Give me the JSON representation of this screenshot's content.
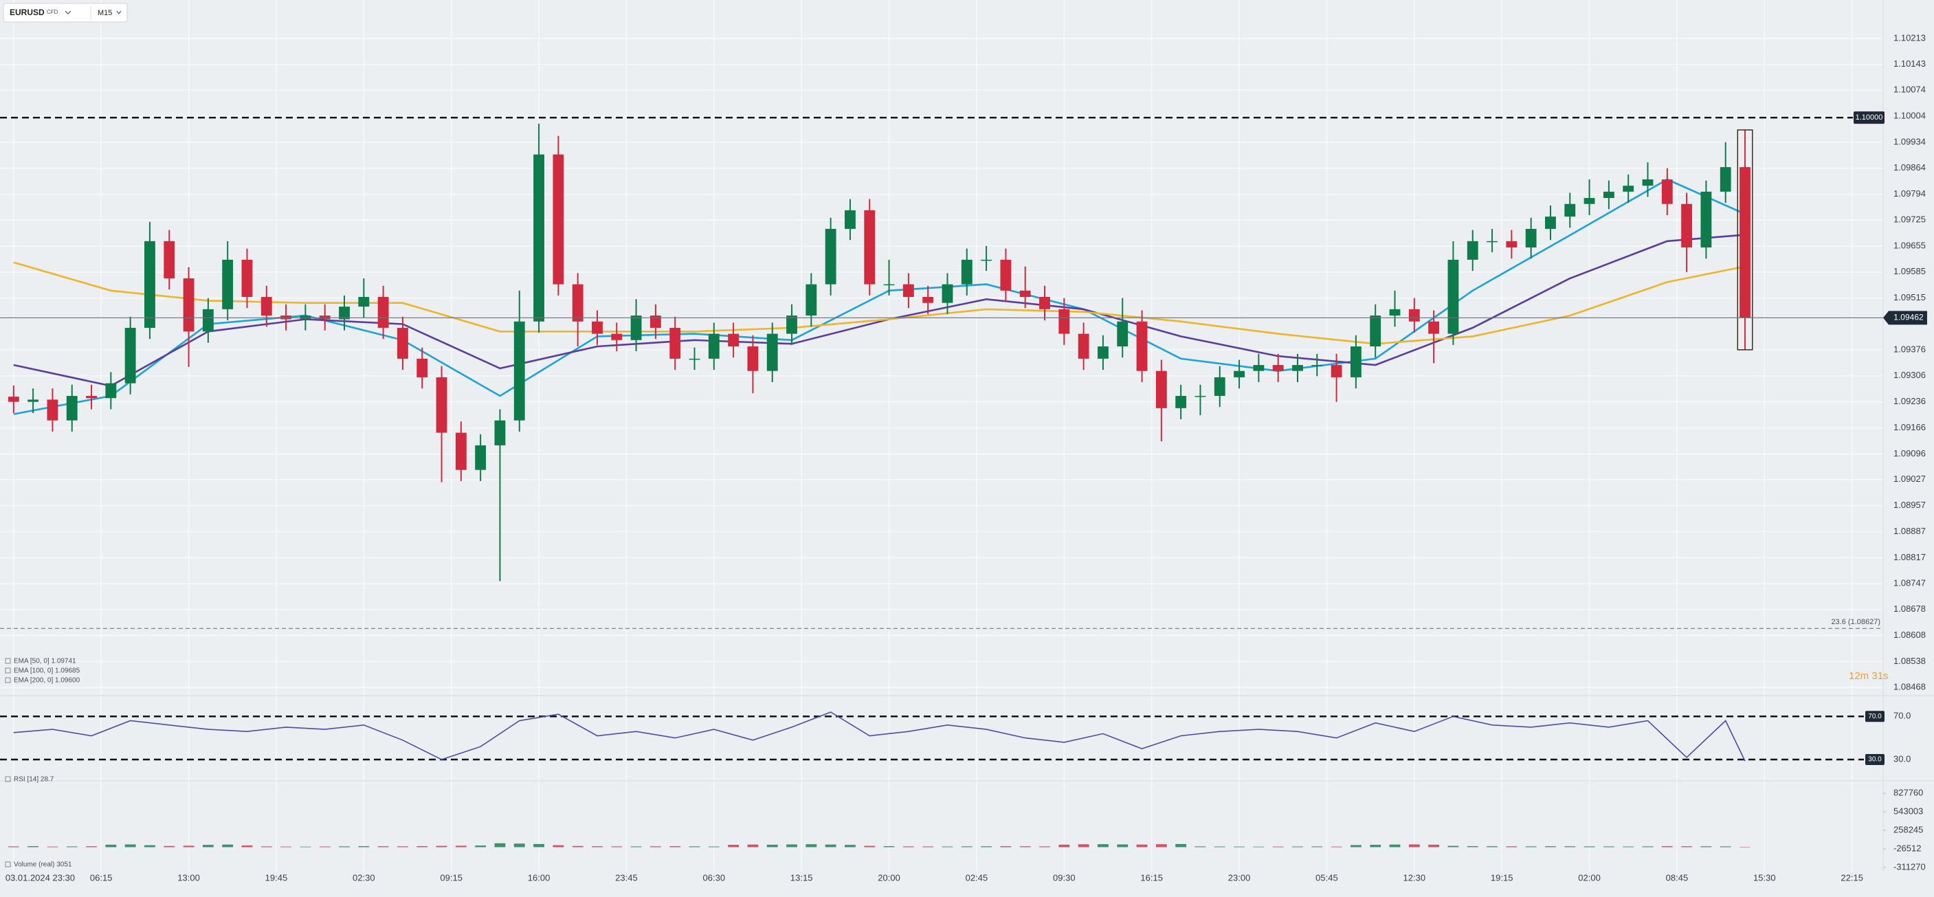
{
  "toolbar": {
    "symbol": "EURUSD",
    "instrument_type": "CFD",
    "timeframe": "M15"
  },
  "countdown": "12m 31s",
  "chart_data": [
    {
      "type": "candlestick",
      "up_color": "#0e7c4a",
      "down_color": "#d1293d",
      "xlim": [
        -0.7,
        96.1
      ],
      "xticks": [
        {
          "value": 0,
          "label": "03.01.2024 23:30"
        },
        {
          "value": 4.5,
          "label": "06:15"
        },
        {
          "value": 9,
          "label": "13:00"
        },
        {
          "value": 13.5,
          "label": "19:45"
        },
        {
          "value": 18,
          "label": "02:30"
        },
        {
          "value": 22.5,
          "label": "09:15"
        },
        {
          "value": 27,
          "label": "16:00"
        },
        {
          "value": 31.5,
          "label": "23:45"
        },
        {
          "value": 36,
          "label": "06:30"
        },
        {
          "value": 40.5,
          "label": "13:15"
        },
        {
          "value": 45,
          "label": "20:00"
        },
        {
          "value": 49.5,
          "label": "02:45"
        },
        {
          "value": 54,
          "label": "09:30"
        },
        {
          "value": 58.5,
          "label": "16:15"
        },
        {
          "value": 63,
          "label": "23:00"
        },
        {
          "value": 67.5,
          "label": "05:45"
        },
        {
          "value": 72,
          "label": "12:30"
        },
        {
          "value": 76.5,
          "label": "19:15"
        },
        {
          "value": 81,
          "label": "02:00"
        },
        {
          "value": 85.5,
          "label": "08:45"
        },
        {
          "value": 90,
          "label": "15:30"
        },
        {
          "value": 94.5,
          "label": "22:15"
        }
      ],
      "ylim": [
        1.0845,
        1.10283
      ],
      "yticks": [
        1.10213,
        1.10143,
        1.10074,
        1.10004,
        1.09934,
        1.09864,
        1.09794,
        1.09725,
        1.09655,
        1.09585,
        1.09515,
        1.09376,
        1.09306,
        1.09236,
        1.09166,
        1.09096,
        1.09027,
        1.08957,
        1.08887,
        1.08817,
        1.08747,
        1.08678,
        1.08608,
        1.08538,
        1.08468
      ],
      "grid": true,
      "levels": [
        {
          "value": 1.1,
          "label": "1.10000"
        }
      ],
      "price_line": {
        "value": 1.09462,
        "label": "1.09462"
      },
      "fib_levels": [
        {
          "value": 1.08627,
          "label": "23.6 (1.08627)"
        }
      ],
      "open": [
        1.0925,
        1.09236,
        1.09242,
        1.09186,
        1.09252,
        1.09246,
        1.09286,
        1.09435,
        1.09668,
        1.09568,
        1.09425,
        1.09485,
        1.09618,
        1.09518,
        1.09468,
        1.09458,
        1.09468,
        1.09458,
        1.09492,
        1.09518,
        1.09435,
        1.09352,
        1.09302,
        1.09153,
        1.09053,
        1.09119,
        1.09186,
        1.09452,
        1.09901,
        1.09552,
        1.09452,
        1.09419,
        1.09402,
        1.09468,
        1.09435,
        1.09352,
        1.09352,
        1.09419,
        1.09385,
        1.09319,
        1.09419,
        1.09468,
        1.09552,
        1.09701,
        1.09751,
        1.09552,
        1.09552,
        1.09518,
        1.09502,
        1.09552,
        1.09618,
        1.09618,
        1.09535,
        1.09518,
        1.09485,
        1.09419,
        1.09352,
        1.09385,
        1.09452,
        1.09319,
        1.09219,
        1.09252,
        1.09252,
        1.09302,
        1.09319,
        1.09335,
        1.09319,
        1.09335,
        1.09335,
        1.09302,
        1.09385,
        1.09468,
        1.09485,
        1.09452,
        1.09419,
        1.09618,
        1.09668,
        1.09668,
        1.09651,
        1.09701,
        1.09734,
        1.09768,
        1.09784,
        1.09801,
        1.09817,
        1.09834,
        1.09768,
        1.09651,
        1.09801,
        1.09867
      ],
      "high": [
        1.0928,
        1.09272,
        1.09272,
        1.09282,
        1.09282,
        1.09316,
        1.09465,
        1.0972,
        1.09698,
        1.09598,
        1.09515,
        1.09668,
        1.09648,
        1.09548,
        1.09498,
        1.09498,
        1.09498,
        1.09522,
        1.09568,
        1.09548,
        1.09465,
        1.09382,
        1.09332,
        1.09183,
        1.09149,
        1.09216,
        1.09535,
        1.09984,
        1.09951,
        1.09582,
        1.09482,
        1.09449,
        1.09512,
        1.09498,
        1.09465,
        1.09382,
        1.09449,
        1.09449,
        1.09415,
        1.09449,
        1.09498,
        1.09582,
        1.09731,
        1.09781,
        1.09781,
        1.09618,
        1.09582,
        1.09548,
        1.09582,
        1.09648,
        1.09655,
        1.09648,
        1.096,
        1.09548,
        1.09515,
        1.09449,
        1.09415,
        1.09515,
        1.09482,
        1.09349,
        1.09282,
        1.09282,
        1.09332,
        1.09349,
        1.09365,
        1.09365,
        1.09365,
        1.09365,
        1.09365,
        1.09415,
        1.09498,
        1.09535,
        1.09515,
        1.09482,
        1.09668,
        1.09698,
        1.09701,
        1.09698,
        1.09731,
        1.09764,
        1.09798,
        1.09834,
        1.09831,
        1.09847,
        1.0988,
        1.09864,
        1.09798,
        1.09831,
        1.09934,
        1.09967
      ],
      "low": [
        1.09206,
        1.09206,
        1.09156,
        1.09156,
        1.09216,
        1.09216,
        1.09256,
        1.09405,
        1.09538,
        1.0933,
        1.09395,
        1.09455,
        1.09488,
        1.09438,
        1.09428,
        1.09428,
        1.09428,
        1.09428,
        1.09462,
        1.09405,
        1.09322,
        1.09272,
        1.0902,
        1.09023,
        1.09023,
        1.08754,
        1.09156,
        1.09422,
        1.09522,
        1.09385,
        1.09389,
        1.09372,
        1.09372,
        1.09405,
        1.09322,
        1.09322,
        1.09322,
        1.09355,
        1.09259,
        1.09289,
        1.09389,
        1.09438,
        1.09522,
        1.09671,
        1.09522,
        1.09522,
        1.09488,
        1.09472,
        1.09472,
        1.09522,
        1.09588,
        1.09505,
        1.09488,
        1.09455,
        1.09389,
        1.09322,
        1.09322,
        1.09355,
        1.09289,
        1.0913,
        1.09189,
        1.092,
        1.09222,
        1.09272,
        1.09289,
        1.09289,
        1.09289,
        1.09305,
        1.09236,
        1.09272,
        1.09355,
        1.09438,
        1.09422,
        1.0934,
        1.09389,
        1.09588,
        1.09638,
        1.09621,
        1.09621,
        1.09671,
        1.09704,
        1.09738,
        1.09754,
        1.09771,
        1.09787,
        1.09738,
        1.09585,
        1.09621,
        1.09771,
        1.09376
      ],
      "close": [
        1.09236,
        1.09242,
        1.09186,
        1.09252,
        1.09246,
        1.09286,
        1.09435,
        1.09668,
        1.09568,
        1.09425,
        1.09485,
        1.09618,
        1.09518,
        1.09468,
        1.09458,
        1.09468,
        1.09458,
        1.09492,
        1.09518,
        1.09435,
        1.09352,
        1.09302,
        1.09153,
        1.09053,
        1.09119,
        1.09186,
        1.09452,
        1.09901,
        1.09552,
        1.09452,
        1.09419,
        1.09402,
        1.09468,
        1.09435,
        1.09352,
        1.09352,
        1.09419,
        1.09385,
        1.09319,
        1.09419,
        1.09468,
        1.09552,
        1.09701,
        1.09751,
        1.09552,
        1.09552,
        1.09518,
        1.09502,
        1.09552,
        1.09618,
        1.09618,
        1.09535,
        1.09518,
        1.09485,
        1.09419,
        1.09352,
        1.09385,
        1.09452,
        1.09319,
        1.09219,
        1.09252,
        1.09252,
        1.09302,
        1.09319,
        1.09335,
        1.09319,
        1.09335,
        1.09335,
        1.09302,
        1.09385,
        1.09468,
        1.09485,
        1.09452,
        1.09419,
        1.09618,
        1.09668,
        1.09668,
        1.09651,
        1.09701,
        1.09734,
        1.09768,
        1.09784,
        1.09801,
        1.09817,
        1.09834,
        1.09768,
        1.09651,
        1.09801,
        1.09867,
        1.09462
      ],
      "overlays": [
        {
          "label": "EMA [50, 0] 1.09741",
          "color": "#1aa3dc",
          "x": [
            0,
            5,
            10,
            15,
            20,
            25,
            30,
            35,
            40,
            45,
            50,
            55,
            60,
            65,
            70,
            75,
            80,
            85,
            89
          ],
          "values": [
            1.09203,
            1.09252,
            1.09445,
            1.09468,
            1.09402,
            1.09252,
            1.09412,
            1.09419,
            1.09402,
            1.09535,
            1.09552,
            1.09485,
            1.09352,
            1.09319,
            1.09352,
            1.09535,
            1.09684,
            1.09834,
            1.09741
          ]
        },
        {
          "label": "EMA [100, 0] 1.09685",
          "color": "#5b3d9e",
          "x": [
            0,
            5,
            10,
            15,
            20,
            25,
            30,
            35,
            40,
            45,
            50,
            55,
            60,
            65,
            70,
            75,
            80,
            85,
            89
          ],
          "values": [
            1.09335,
            1.09279,
            1.09425,
            1.09458,
            1.09445,
            1.09326,
            1.09385,
            1.09402,
            1.09392,
            1.09458,
            1.09512,
            1.09485,
            1.09412,
            1.09359,
            1.09335,
            1.09435,
            1.09568,
            1.09668,
            1.09685
          ]
        },
        {
          "label": "EMA [200, 0] 1.09600",
          "color": "#f0b429",
          "x": [
            0,
            5,
            10,
            15,
            20,
            25,
            30,
            35,
            40,
            45,
            50,
            55,
            60,
            65,
            70,
            75,
            80,
            85,
            89
          ],
          "values": [
            1.09611,
            1.09535,
            1.09508,
            1.09502,
            1.09502,
            1.09425,
            1.09425,
            1.09425,
            1.09435,
            1.09458,
            1.09485,
            1.09478,
            1.09452,
            1.09419,
            1.09392,
            1.09412,
            1.09468,
            1.09558,
            1.096
          ]
        }
      ]
    },
    {
      "type": "line",
      "label": "RSI [14] 28.7",
      "color": "#4b4ba8",
      "ylim": [
        16,
        88
      ],
      "yticks": [
        {
          "value": 70,
          "label": "70.0"
        },
        {
          "value": 30,
          "label": "30.0"
        }
      ],
      "x": [
        0,
        2,
        4,
        6,
        8,
        10,
        12,
        14,
        16,
        18,
        20,
        22,
        24,
        26,
        28,
        30,
        32,
        34,
        36,
        38,
        40,
        42,
        44,
        46,
        48,
        50,
        52,
        54,
        56,
        58,
        60,
        62,
        64,
        66,
        68,
        70,
        72,
        74,
        76,
        78,
        80,
        82,
        84,
        86,
        88,
        89
      ],
      "values": [
        55,
        58,
        52,
        66,
        62,
        58,
        56,
        60,
        58,
        62,
        48,
        30,
        42,
        66,
        72,
        52,
        56,
        50,
        58,
        48,
        60,
        74,
        52,
        56,
        62,
        58,
        50,
        46,
        54,
        40,
        52,
        56,
        58,
        56,
        50,
        64,
        56,
        70,
        62,
        60,
        64,
        60,
        66,
        32,
        66,
        28.7
      ]
    },
    {
      "type": "bar",
      "label": "Volume (real) 3051",
      "ylim": [
        -342915,
        954342
      ],
      "yticks": [
        827760,
        543003,
        258245,
        -26512,
        -311270
      ],
      "values": [
        12000,
        15000,
        9000,
        11000,
        14000,
        38000,
        42000,
        30000,
        18000,
        22000,
        35000,
        40000,
        26000,
        12000,
        9000,
        8000,
        10000,
        12000,
        15000,
        14000,
        13000,
        16000,
        20000,
        22000,
        25000,
        60000,
        55000,
        48000,
        30000,
        18000,
        14000,
        12000,
        11000,
        13000,
        15000,
        12000,
        10000,
        36000,
        40000,
        38000,
        42000,
        45000,
        40000,
        35000,
        20000,
        15000,
        12000,
        11000,
        10000,
        12000,
        13000,
        15000,
        14000,
        12000,
        38000,
        44000,
        46000,
        42000,
        40000,
        45000,
        48000,
        12000,
        10000,
        9000,
        8000,
        9000,
        10000,
        11000,
        9000,
        32000,
        36000,
        40000,
        42000,
        38000,
        20000,
        15000,
        14000,
        13000,
        12000,
        14000,
        13000,
        12000,
        11000,
        10000,
        12000,
        15000,
        14000,
        13000,
        12000,
        3051
      ]
    }
  ]
}
